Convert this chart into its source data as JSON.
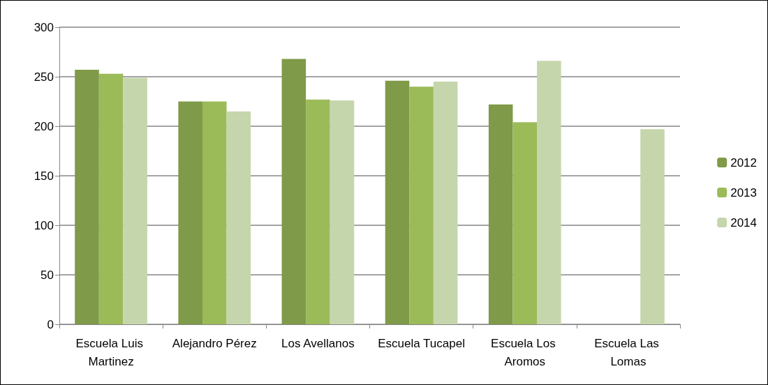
{
  "chart_data": {
    "type": "bar",
    "categories": [
      "Escuela Luis Martinez",
      "Alejandro Pérez",
      "Los Avellanos",
      "Escuela Tucapel",
      "Escuela Los Aromos",
      "Escuela Las Lomas"
    ],
    "series": [
      {
        "name": "2012",
        "color": "#7f9a48",
        "values": [
          257,
          225,
          268,
          246,
          222,
          null
        ]
      },
      {
        "name": "2013",
        "color": "#9bbb59",
        "values": [
          253,
          225,
          227,
          240,
          204,
          null
        ]
      },
      {
        "name": "2014",
        "color": "#c6d6ac",
        "values": [
          249,
          215,
          226,
          245,
          266,
          197
        ]
      }
    ],
    "ylim": [
      0,
      300
    ],
    "yticks": [
      0,
      50,
      100,
      150,
      200,
      250,
      300
    ],
    "grid": "y",
    "legend": "right"
  }
}
